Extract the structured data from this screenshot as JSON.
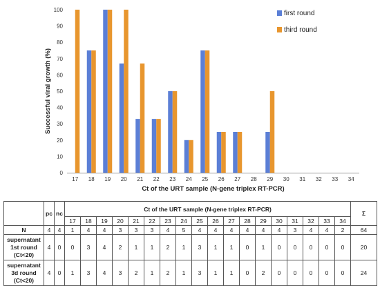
{
  "chart_data": {
    "type": "bar",
    "xlabel": "Ct of the URT sample (N-gene triplex RT-PCR)",
    "ylabel": "Successful viral growth (%)",
    "ylim": [
      0,
      100
    ],
    "yticks": [
      0,
      10,
      20,
      30,
      40,
      50,
      60,
      70,
      80,
      90,
      100
    ],
    "categories": [
      "17",
      "18",
      "19",
      "20",
      "21",
      "22",
      "23",
      "24",
      "25",
      "26",
      "27",
      "28",
      "29",
      "30",
      "31",
      "32",
      "33",
      "34"
    ],
    "series": [
      {
        "name": "first round",
        "color": "#5b7fd6",
        "values": [
          0,
          75,
          100,
          67,
          33,
          33,
          50,
          20,
          75,
          25,
          25,
          0,
          25,
          0,
          0,
          0,
          0,
          0
        ]
      },
      {
        "name": "third round",
        "color": "#e8962e",
        "values": [
          100,
          75,
          100,
          100,
          67,
          33,
          50,
          20,
          75,
          25,
          25,
          0,
          50,
          0,
          0,
          0,
          0,
          0
        ]
      }
    ],
    "legend_position": "top-right",
    "grid": false
  },
  "table": {
    "header_title": "Ct of the URT sample (N-gene triplex RT-PCR)",
    "pc_label": "pc",
    "nc_label": "nc",
    "sum_label": "Σ",
    "ct_values": [
      "17",
      "18",
      "19",
      "20",
      "21",
      "22",
      "23",
      "24",
      "25",
      "26",
      "27",
      "28",
      "29",
      "30",
      "31",
      "32",
      "33",
      "34"
    ],
    "rows": [
      {
        "label": "N",
        "pc": "4",
        "nc": "4",
        "values": [
          "1",
          "4",
          "4",
          "3",
          "3",
          "3",
          "4",
          "5",
          "4",
          "4",
          "4",
          "4",
          "4",
          "4",
          "3",
          "4",
          "4",
          "2"
        ],
        "sum": "64"
      },
      {
        "label": "supernatant 1st round (Ct<20)",
        "pc": "4",
        "nc": "0",
        "values": [
          "0",
          "3",
          "4",
          "2",
          "1",
          "1",
          "2",
          "1",
          "3",
          "1",
          "1",
          "0",
          "1",
          "0",
          "0",
          "0",
          "0",
          "0"
        ],
        "sum": "20"
      },
      {
        "label": "supernatant 3d round (Ct<20)",
        "pc": "4",
        "nc": "0",
        "values": [
          "1",
          "3",
          "4",
          "3",
          "2",
          "1",
          "2",
          "1",
          "3",
          "1",
          "1",
          "0",
          "2",
          "0",
          "0",
          "0",
          "0",
          "0"
        ],
        "sum": "24"
      }
    ]
  }
}
